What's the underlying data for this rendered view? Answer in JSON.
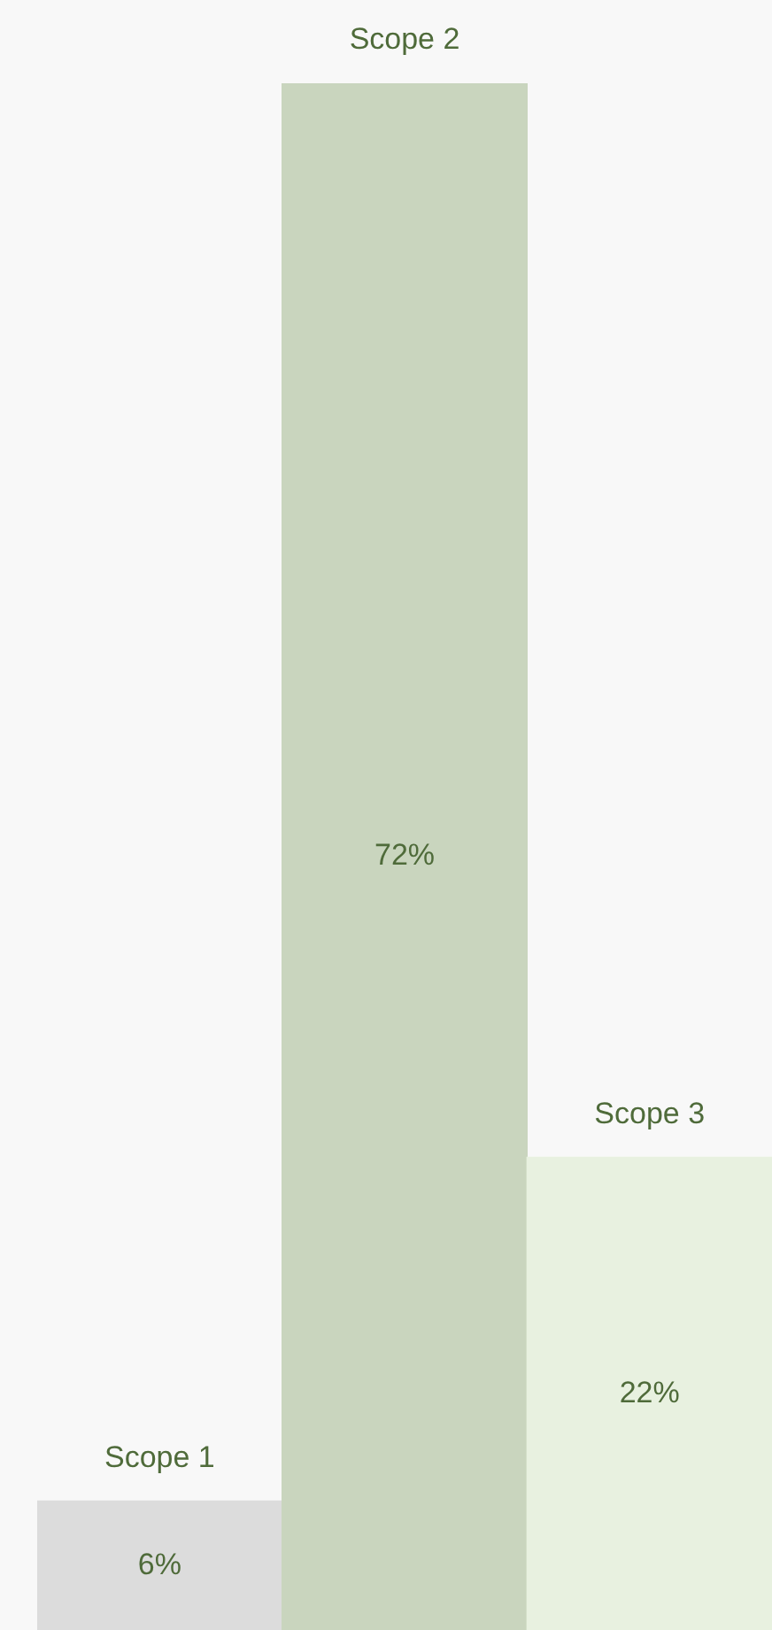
{
  "chart_data": {
    "type": "bar",
    "categories": [
      "Scope 1",
      "Scope 2",
      "Scope 3"
    ],
    "values": [
      6,
      72,
      22
    ],
    "colors": [
      "#dcdcdc",
      "#c9d5be",
      "#e8f1e0"
    ],
    "value_labels": [
      "6%",
      "72%",
      "22%"
    ],
    "ylim": [
      0,
      72
    ]
  }
}
